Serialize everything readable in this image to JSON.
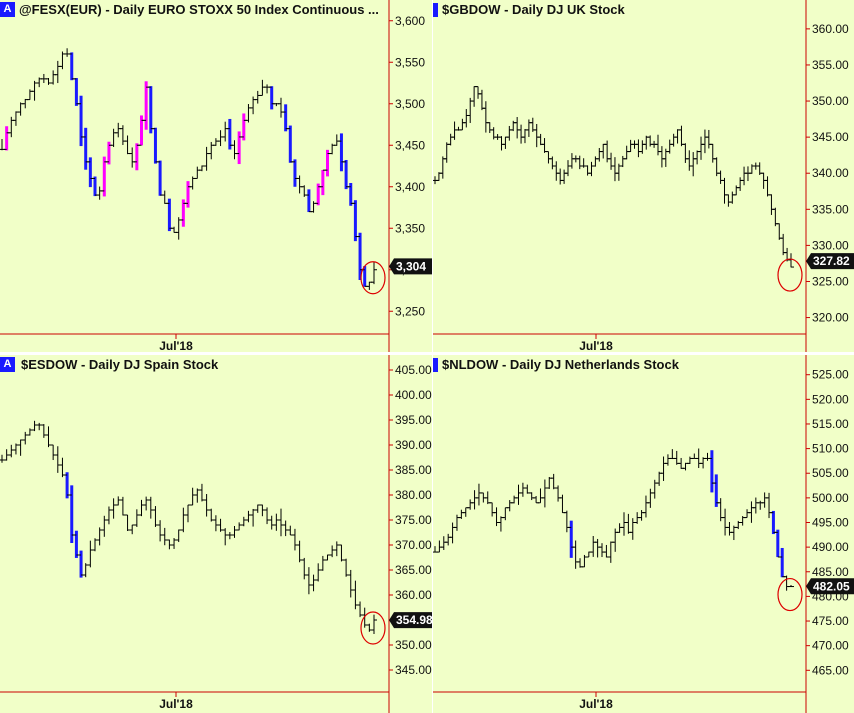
{
  "colors": {
    "background": "#f1ffc8",
    "bar": "#000000",
    "up_highlight": "#ff00ff",
    "down_highlight": "#1a1aff",
    "axis": "#cc0000",
    "circle": "#dd0000"
  },
  "chart_data": [
    {
      "type": "ohlc",
      "title": "@FESX(EUR) - Daily  EURO STOXX 50 Index Continuous ...",
      "badge": "A",
      "y_ticks": [
        "3,600",
        "3,550",
        "3,500",
        "3,450",
        "3,400",
        "3,350",
        "3,300",
        "3,250"
      ],
      "ylim": [
        3225,
        3625
      ],
      "x_tick": "Jul'18",
      "last_price": "3,304",
      "closes": [
        3445,
        3465,
        3480,
        3490,
        3500,
        3505,
        3515,
        3525,
        3530,
        3530,
        3525,
        3535,
        3545,
        3560,
        3560,
        3530,
        3500,
        3460,
        3430,
        3410,
        3390,
        3395,
        3430,
        3450,
        3465,
        3470,
        3455,
        3440,
        3430,
        3450,
        3480,
        3520,
        3470,
        3430,
        3390,
        3380,
        3350,
        3345,
        3360,
        3380,
        3400,
        3410,
        3420,
        3425,
        3440,
        3450,
        3455,
        3460,
        3470,
        3450,
        3440,
        3460,
        3480,
        3495,
        3505,
        3510,
        3520,
        3520,
        3500,
        3500,
        3490,
        3470,
        3430,
        3410,
        3400,
        3390,
        3370,
        3380,
        3400,
        3420,
        3440,
        3450,
        3455,
        3430,
        3400,
        3380,
        3340,
        3300,
        3280,
        3285,
        3300
      ]
    },
    {
      "type": "ohlc",
      "title": "$GBDOW - Daily  DJ UK Stock",
      "badge": "",
      "y_ticks": [
        "360.00",
        "355.00",
        "350.00",
        "345.00",
        "340.00",
        "335.00",
        "330.00",
        "325.00",
        "320.00"
      ],
      "ylim": [
        318,
        364
      ],
      "x_tick": "Jul'18",
      "last_price": "327.82",
      "closes": [
        339,
        340,
        342,
        344,
        345,
        346,
        346,
        347,
        348,
        350,
        352,
        351,
        349,
        347,
        346,
        345,
        345,
        344,
        345,
        346,
        347,
        346,
        345,
        346,
        347,
        346,
        345,
        344,
        343,
        342,
        341,
        340,
        339,
        340,
        341,
        342,
        342,
        341,
        341,
        340,
        341,
        342,
        343,
        344,
        342,
        341,
        340,
        341,
        342,
        343,
        344,
        344,
        343,
        344,
        345,
        344,
        344,
        343,
        342,
        343,
        344,
        345,
        346,
        344,
        342,
        341,
        342,
        343,
        344,
        345,
        344,
        342,
        340,
        339,
        337,
        336,
        337,
        338,
        339,
        340,
        340,
        341,
        341,
        340,
        339,
        337,
        335,
        333,
        331,
        329,
        328,
        327
      ]
    },
    {
      "type": "ohlc",
      "title": "$ESDOW - Daily  DJ Spain Stock",
      "badge": "A",
      "y_ticks": [
        "405.00",
        "400.00",
        "395.00",
        "390.00",
        "385.00",
        "380.00",
        "375.00",
        "370.00",
        "365.00",
        "360.00",
        "355.00",
        "350.00",
        "345.00"
      ],
      "ylim": [
        341,
        408
      ],
      "x_tick": "Jul'18",
      "last_price": "354.98",
      "closes": [
        387,
        388,
        389,
        390,
        391,
        392,
        393,
        394,
        394,
        392,
        390,
        388,
        386,
        384,
        380,
        372,
        368,
        364,
        366,
        369,
        371,
        373,
        375,
        377,
        378,
        379,
        376,
        373,
        374,
        376,
        378,
        379,
        377,
        374,
        372,
        371,
        370,
        371,
        373,
        376,
        378,
        380,
        381,
        379,
        377,
        375,
        374,
        373,
        372,
        372,
        373,
        374,
        375,
        376,
        377,
        378,
        377,
        375,
        374,
        375,
        374,
        373,
        372,
        370,
        367,
        364,
        362,
        363,
        365,
        367,
        368,
        369,
        370,
        367,
        364,
        361,
        358,
        356,
        354,
        353,
        355
      ]
    },
    {
      "type": "ohlc",
      "title": "$NLDOW - Daily  DJ Netherlands Stock",
      "badge": "",
      "y_ticks": [
        "525.00",
        "520.00",
        "515.00",
        "510.00",
        "505.00",
        "500.00",
        "495.00",
        "490.00",
        "485.00",
        "480.00",
        "475.00",
        "470.00",
        "465.00"
      ],
      "ylim": [
        461,
        529
      ],
      "x_tick": "Jul'18",
      "last_price": "482.05",
      "closes": [
        489,
        490,
        491,
        492,
        494,
        496,
        497,
        498,
        499,
        500,
        501,
        500,
        499,
        497,
        495,
        496,
        498,
        499,
        500,
        501,
        502,
        501,
        500,
        499,
        500,
        502,
        504,
        502,
        500,
        497,
        494,
        490,
        487,
        486,
        488,
        489,
        491,
        490,
        489,
        488,
        491,
        493,
        494,
        495,
        493,
        495,
        496,
        497,
        499,
        501,
        503,
        505,
        507,
        508,
        508,
        507,
        506,
        507,
        508,
        508,
        507,
        508,
        508,
        503,
        499,
        496,
        494,
        493,
        494,
        495,
        496,
        497,
        498,
        499,
        499,
        500,
        497,
        493,
        488,
        484,
        482,
        482
      ]
    }
  ]
}
